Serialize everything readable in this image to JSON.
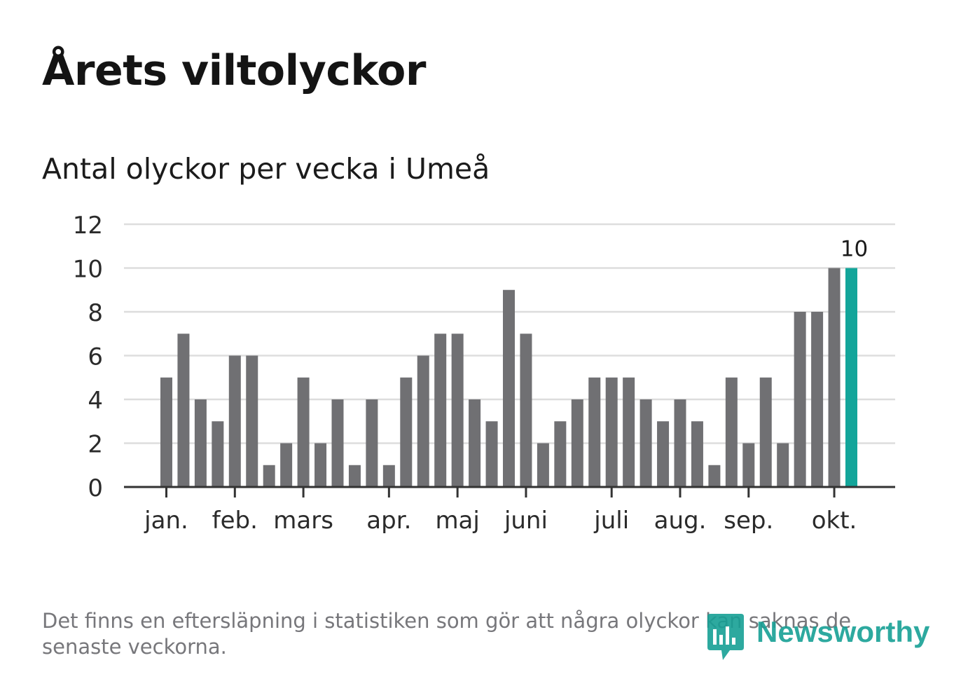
{
  "title": "Årets viltolyckor",
  "subtitle": "Antal olyckor per vecka i Umeå",
  "footnote": "Det finns en eftersläpning i statistiken som gör att några olyckor kan saknas de senaste veckorna.",
  "logo": {
    "text": "Newsworthy",
    "icon": "newsworthy-chart-icon"
  },
  "colors": {
    "bar": "#707073",
    "highlight": "#13a59a",
    "grid": "#dddddd",
    "axis": "#333333",
    "text": "#2b2b2b"
  },
  "chart_data": {
    "type": "bar",
    "title": "Antal olyckor per vecka i Umeå",
    "xlabel": "",
    "ylabel": "",
    "ylim": [
      0,
      12
    ],
    "yticks": [
      0,
      2,
      4,
      6,
      8,
      10,
      12
    ],
    "grid": true,
    "weeks": [
      1,
      2,
      3,
      4,
      5,
      6,
      7,
      8,
      9,
      10,
      11,
      12,
      13,
      14,
      15,
      16,
      17,
      18,
      19,
      20,
      21,
      22,
      23,
      24,
      25,
      26,
      27,
      28,
      29,
      30,
      31,
      32,
      33,
      34,
      35,
      36,
      37,
      38,
      39,
      40,
      41
    ],
    "values": [
      5,
      7,
      4,
      3,
      6,
      6,
      1,
      2,
      5,
      2,
      4,
      1,
      4,
      1,
      5,
      6,
      7,
      7,
      4,
      3,
      9,
      7,
      2,
      3,
      4,
      5,
      5,
      5,
      4,
      3,
      4,
      3,
      1,
      5,
      2,
      5,
      2,
      8,
      8,
      10,
      10
    ],
    "highlight_index": 40,
    "highlight_label": "10",
    "month_labels": [
      {
        "label": "jan.",
        "week": 1
      },
      {
        "label": "feb.",
        "week": 5
      },
      {
        "label": "mars",
        "week": 9
      },
      {
        "label": "apr.",
        "week": 14
      },
      {
        "label": "maj",
        "week": 18
      },
      {
        "label": "juni",
        "week": 22
      },
      {
        "label": "juli",
        "week": 27
      },
      {
        "label": "aug.",
        "week": 31
      },
      {
        "label": "sep.",
        "week": 35
      },
      {
        "label": "okt.",
        "week": 40
      }
    ]
  }
}
